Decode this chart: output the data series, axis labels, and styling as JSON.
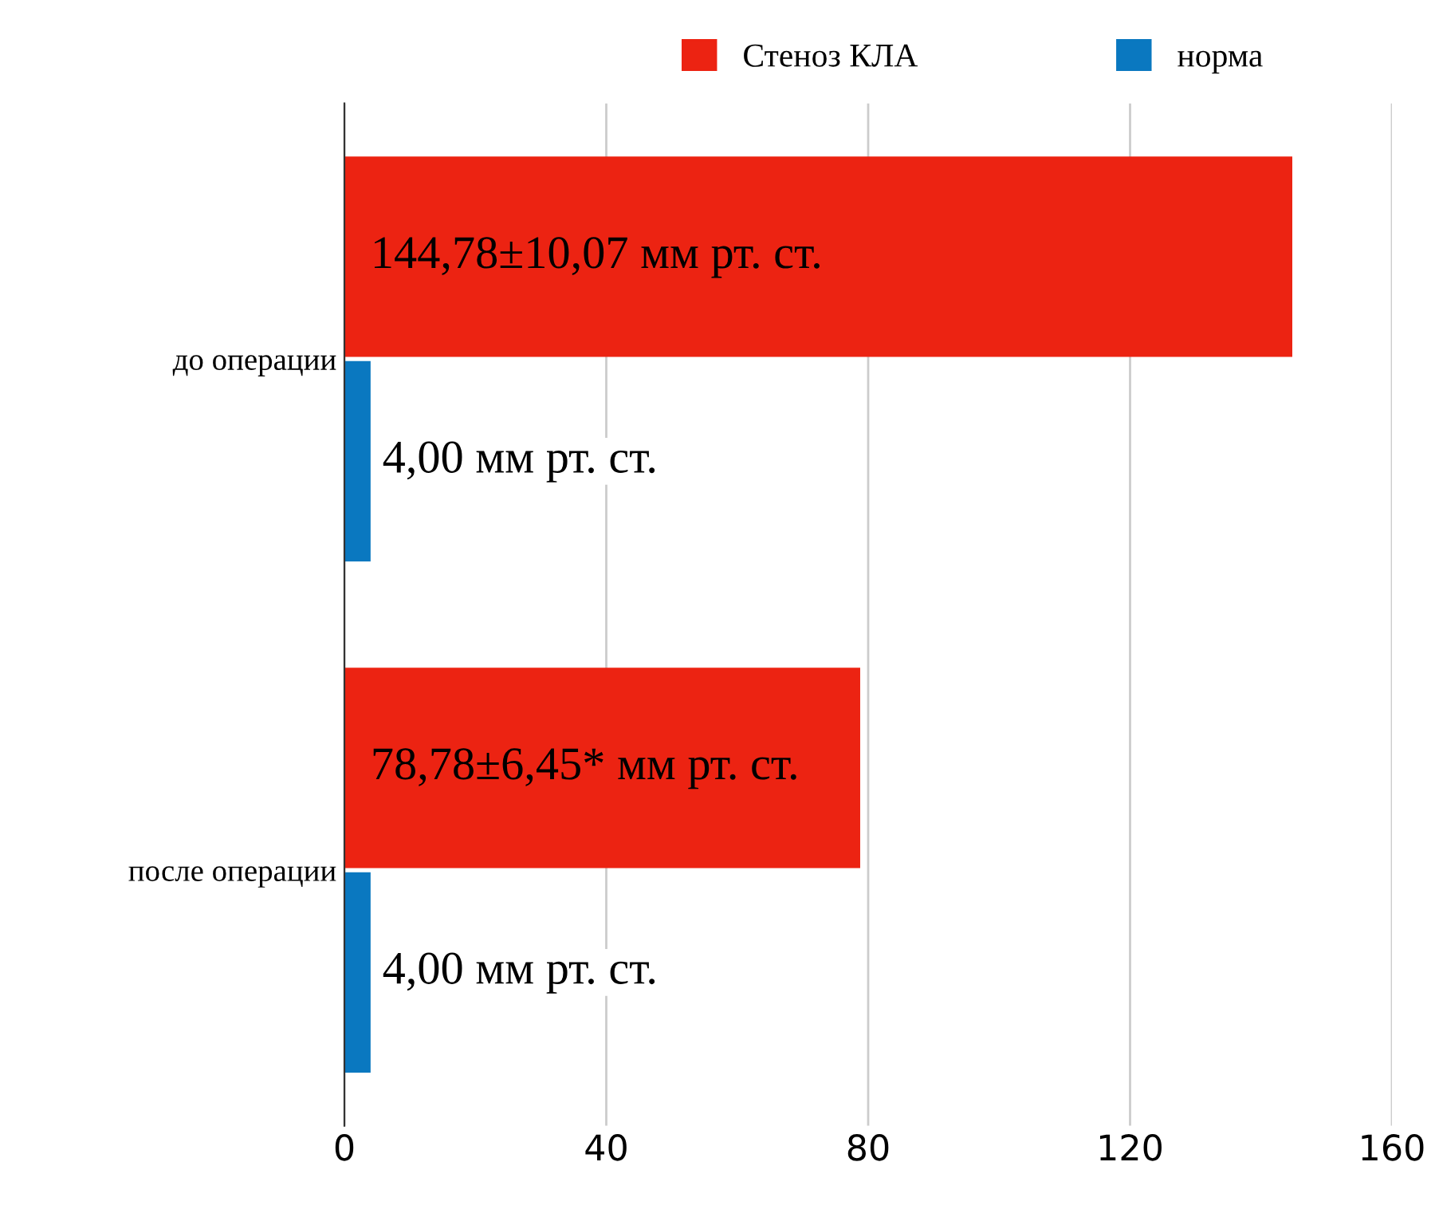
{
  "chart_data": {
    "type": "bar",
    "orientation": "horizontal",
    "categories": [
      "до операции",
      "после операции"
    ],
    "series": [
      {
        "name": "Стеноз КЛА",
        "color": "#ec2312",
        "values": [
          144.78,
          78.78
        ],
        "value_labels": [
          "144,78±10,07 мм рт. ст.",
          "78,78±6,45* мм рт. ст."
        ]
      },
      {
        "name": "норма",
        "color": "#0a78c0",
        "values": [
          4.0,
          4.0
        ],
        "value_labels": [
          "4,00 мм рт. ст.",
          "4,00 мм рт. ст."
        ]
      }
    ],
    "xlim": [
      0,
      160
    ],
    "xticks": [
      0,
      40,
      80,
      120,
      160
    ],
    "grid": "x",
    "legend": "top"
  }
}
